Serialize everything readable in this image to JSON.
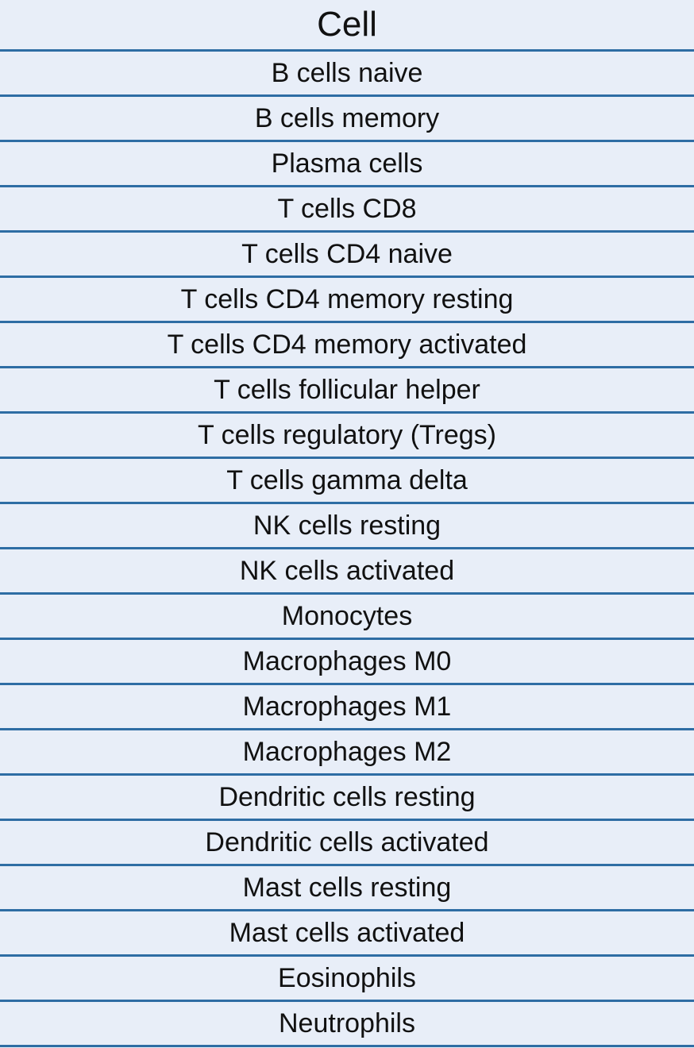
{
  "table": {
    "header": "Cell",
    "rows": [
      "B cells naive",
      "B cells memory",
      "Plasma cells",
      "T cells CD8",
      "T cells CD4 naive",
      "T cells CD4 memory resting",
      "T cells CD4 memory activated",
      "T cells follicular helper",
      "T cells regulatory (Tregs)",
      "T cells gamma delta",
      "NK cells resting",
      "NK cells activated",
      "Monocytes",
      "Macrophages M0",
      "Macrophages M1",
      "Macrophages M2",
      "Dendritic cells resting",
      "Dendritic cells activated",
      "Mast cells resting",
      "Mast cells activated",
      "Eosinophils",
      "Neutrophils"
    ]
  },
  "colors": {
    "background": "#e8eef8",
    "rule": "#2e6da4",
    "text": "#111111"
  }
}
